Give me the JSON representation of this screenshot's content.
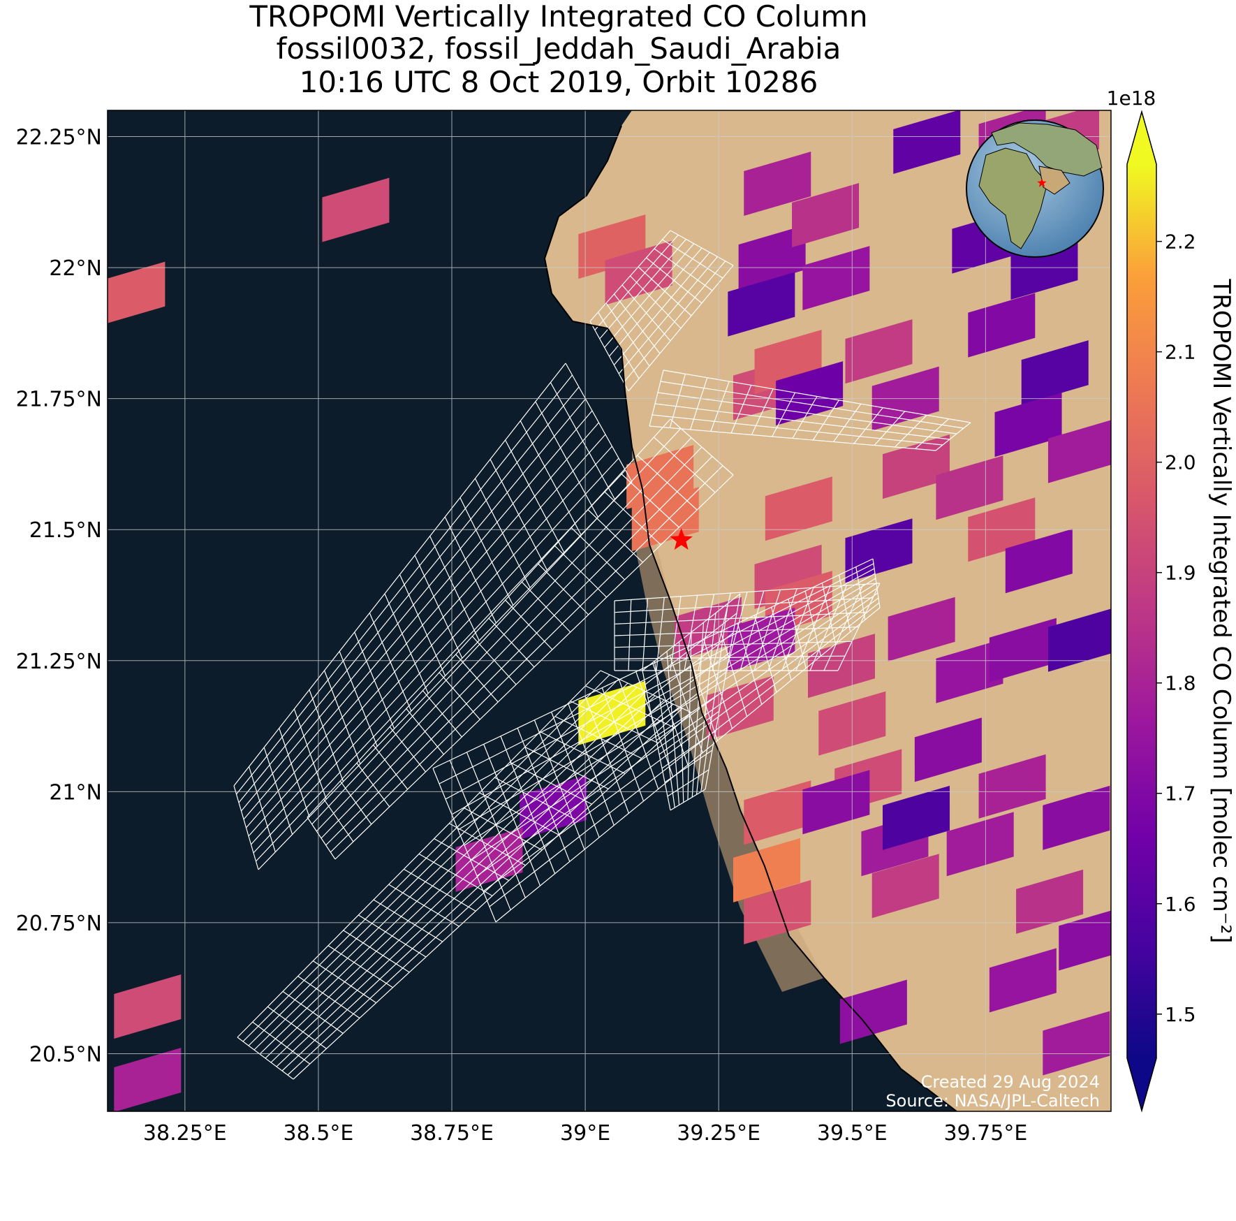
{
  "title": {
    "line1": "TROPOMI Vertically Integrated CO Column",
    "line2": "fossil0032, fossil_Jeddah_Saudi_Arabia",
    "line3": "10:16 UTC 8 Oct 2019, Orbit 10286"
  },
  "map": {
    "lon_range": [
      38.105,
      39.985
    ],
    "lat_range": [
      20.39,
      22.3
    ],
    "lon_ticks": [
      {
        "value": 38.25,
        "label": "38.25°E"
      },
      {
        "value": 38.5,
        "label": "38.5°E"
      },
      {
        "value": 38.75,
        "label": "38.75°E"
      },
      {
        "value": 39.0,
        "label": "39°E"
      },
      {
        "value": 39.25,
        "label": "39.25°E"
      },
      {
        "value": 39.5,
        "label": "39.5°E"
      },
      {
        "value": 39.75,
        "label": "39.75°E"
      }
    ],
    "lat_ticks": [
      {
        "value": 22.25,
        "label": "22.25°N"
      },
      {
        "value": 22.0,
        "label": "22°N"
      },
      {
        "value": 21.75,
        "label": "21.75°N"
      },
      {
        "value": 21.5,
        "label": "21.5°N"
      },
      {
        "value": 21.25,
        "label": "21.25°N"
      },
      {
        "value": 21.0,
        "label": "21°N"
      },
      {
        "value": 20.75,
        "label": "20.75°N"
      },
      {
        "value": 20.5,
        "label": "20.5°N"
      }
    ],
    "site_marker": {
      "name": "Jeddah",
      "lon": 39.18,
      "lat": 21.48,
      "color": "#ff0000"
    },
    "sea_color": "#0c1c2a",
    "land_color": "#d8b88c",
    "grid_color": "#cccccc",
    "inset_globe": true
  },
  "colorbar": {
    "label": "TROPOMI Vertically Integrated CO Column [molec cm⁻²]",
    "multiplier": "1e18",
    "min": 1.46,
    "max": 2.27,
    "ticks": [
      1.5,
      1.6,
      1.7,
      1.8,
      1.9,
      2.0,
      2.1,
      2.2
    ],
    "colormap": "plasma",
    "extend": "both"
  },
  "credit": {
    "line1": "Created 29 Aug 2024",
    "line2": "Source: NASA/JPL-Caltech"
  },
  "chart_data": {
    "type": "heatmap",
    "quantity": "CO column (×1e18 molec cm⁻²)",
    "pixels": [
      {
        "lon": 38.57,
        "lat": 22.11,
        "value": 1.93
      },
      {
        "lon": 38.15,
        "lat": 21.95,
        "value": 1.98
      },
      {
        "lon": 39.05,
        "lat": 22.04,
        "value": 2.0
      },
      {
        "lon": 39.1,
        "lat": 21.99,
        "value": 1.93
      },
      {
        "lon": 39.14,
        "lat": 21.6,
        "value": 2.05
      },
      {
        "lon": 39.15,
        "lat": 21.52,
        "value": 2.05
      },
      {
        "lon": 39.05,
        "lat": 21.15,
        "value": 2.26
      },
      {
        "lon": 38.94,
        "lat": 20.97,
        "value": 1.69
      },
      {
        "lon": 38.82,
        "lat": 20.87,
        "value": 1.8
      },
      {
        "lon": 38.18,
        "lat": 20.59,
        "value": 1.93
      },
      {
        "lon": 38.18,
        "lat": 20.45,
        "value": 1.8
      },
      {
        "lon": 39.23,
        "lat": 21.31,
        "value": 1.88
      },
      {
        "lon": 39.29,
        "lat": 21.16,
        "value": 1.93
      },
      {
        "lon": 39.36,
        "lat": 20.96,
        "value": 1.98
      },
      {
        "lon": 39.34,
        "lat": 20.85,
        "value": 2.08
      },
      {
        "lon": 39.36,
        "lat": 20.77,
        "value": 1.95
      },
      {
        "lon": 39.34,
        "lat": 21.77,
        "value": 1.93
      },
      {
        "lon": 39.38,
        "lat": 21.82,
        "value": 1.98
      },
      {
        "lon": 39.42,
        "lat": 21.76,
        "value": 1.65
      },
      {
        "lon": 39.4,
        "lat": 21.54,
        "value": 1.98
      },
      {
        "lon": 39.38,
        "lat": 21.41,
        "value": 1.93
      },
      {
        "lon": 39.4,
        "lat": 21.36,
        "value": 1.98
      },
      {
        "lon": 39.33,
        "lat": 21.29,
        "value": 1.77
      },
      {
        "lon": 39.48,
        "lat": 21.24,
        "value": 1.9
      },
      {
        "lon": 39.5,
        "lat": 21.13,
        "value": 1.93
      },
      {
        "lon": 39.53,
        "lat": 21.02,
        "value": 1.93
      },
      {
        "lon": 39.58,
        "lat": 20.9,
        "value": 1.78
      },
      {
        "lon": 39.6,
        "lat": 20.82,
        "value": 1.88
      },
      {
        "lon": 39.54,
        "lat": 20.58,
        "value": 1.73
      },
      {
        "lon": 39.55,
        "lat": 21.46,
        "value": 1.6
      },
      {
        "lon": 39.36,
        "lat": 22.16,
        "value": 1.8
      },
      {
        "lon": 39.35,
        "lat": 22.02,
        "value": 1.72
      },
      {
        "lon": 39.33,
        "lat": 21.93,
        "value": 1.6
      },
      {
        "lon": 39.45,
        "lat": 22.1,
        "value": 1.85
      },
      {
        "lon": 39.47,
        "lat": 21.98,
        "value": 1.75
      },
      {
        "lon": 39.55,
        "lat": 21.84,
        "value": 1.88
      },
      {
        "lon": 39.6,
        "lat": 21.75,
        "value": 1.78
      },
      {
        "lon": 39.62,
        "lat": 21.62,
        "value": 1.9
      },
      {
        "lon": 39.72,
        "lat": 21.58,
        "value": 1.85
      },
      {
        "lon": 39.78,
        "lat": 21.5,
        "value": 1.95
      },
      {
        "lon": 39.85,
        "lat": 21.44,
        "value": 1.7
      },
      {
        "lon": 39.83,
        "lat": 21.7,
        "value": 1.68
      },
      {
        "lon": 39.93,
        "lat": 21.65,
        "value": 1.78
      },
      {
        "lon": 39.88,
        "lat": 21.8,
        "value": 1.6
      },
      {
        "lon": 39.78,
        "lat": 21.89,
        "value": 1.7
      },
      {
        "lon": 39.75,
        "lat": 22.05,
        "value": 1.62
      },
      {
        "lon": 39.86,
        "lat": 22.0,
        "value": 1.6
      },
      {
        "lon": 39.64,
        "lat": 22.24,
        "value": 1.62
      },
      {
        "lon": 39.8,
        "lat": 22.25,
        "value": 1.8
      },
      {
        "lon": 39.9,
        "lat": 22.25,
        "value": 1.88
      },
      {
        "lon": 39.63,
        "lat": 21.31,
        "value": 1.8
      },
      {
        "lon": 39.72,
        "lat": 21.23,
        "value": 1.75
      },
      {
        "lon": 39.82,
        "lat": 21.27,
        "value": 1.72
      },
      {
        "lon": 39.93,
        "lat": 21.29,
        "value": 1.58
      },
      {
        "lon": 39.68,
        "lat": 21.08,
        "value": 1.72
      },
      {
        "lon": 39.8,
        "lat": 21.01,
        "value": 1.8
      },
      {
        "lon": 39.92,
        "lat": 20.95,
        "value": 1.72
      },
      {
        "lon": 39.74,
        "lat": 20.9,
        "value": 1.78
      },
      {
        "lon": 39.87,
        "lat": 20.79,
        "value": 1.85
      },
      {
        "lon": 39.95,
        "lat": 20.72,
        "value": 1.72
      },
      {
        "lon": 39.82,
        "lat": 20.64,
        "value": 1.75
      },
      {
        "lon": 39.92,
        "lat": 20.52,
        "value": 1.78
      },
      {
        "lon": 39.62,
        "lat": 20.95,
        "value": 1.58
      },
      {
        "lon": 39.47,
        "lat": 20.98,
        "value": 1.72
      }
    ]
  }
}
